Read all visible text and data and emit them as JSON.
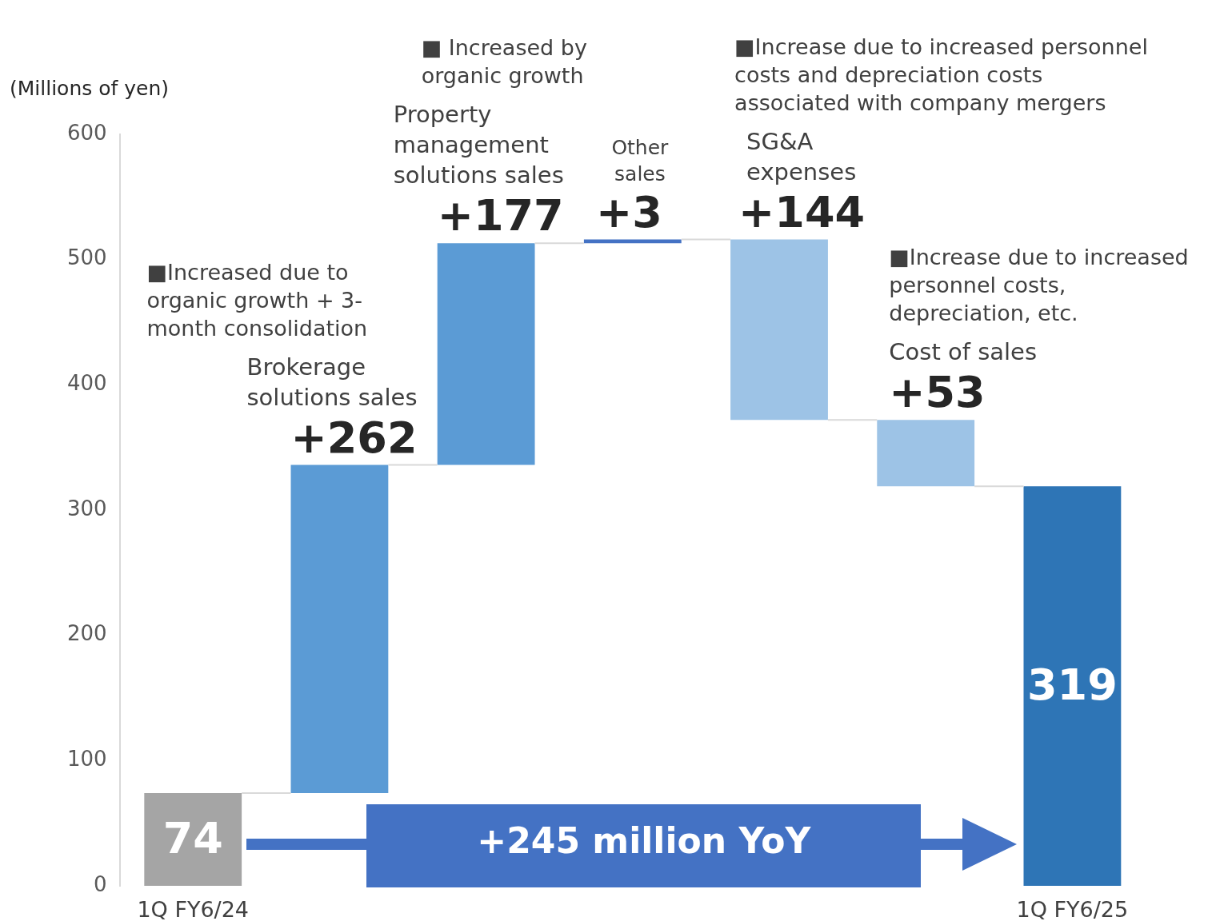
{
  "chart_data": {
    "type": "bar",
    "ylabel": "(Millions of yen)",
    "categories": [
      "1Q FY6/24",
      "Brokerage solutions sales",
      "Property management solutions sales",
      "Other sales",
      "SG&A expenses",
      "Cost of sales",
      "1Q FY6/25"
    ],
    "values": [
      74,
      262,
      177,
      3,
      -144,
      -53,
      319
    ],
    "base": [
      0,
      74,
      336,
      513,
      516,
      372,
      0
    ],
    "colors": [
      "#a5a5a5",
      "#5b9bd5",
      "#5b9bd5",
      "#4472c4",
      "#9dc3e6",
      "#9dc3e6",
      "#2e75b6"
    ],
    "value_labels": [
      "74",
      "+262",
      "+177",
      "+3",
      "+144",
      "+53",
      "319"
    ],
    "ylim": [
      0,
      600
    ],
    "yticks": [
      0,
      100,
      200,
      300,
      400,
      500,
      600
    ],
    "annotations": [
      "■Increased due to organic growth + 3-month consolidation",
      "■ Increased by organic growth",
      "■Increase due to increased personnel costs and depreciation costs associated with company mergers",
      "■Increase due to increased personnel costs, depreciation, etc.",
      "+245 million YoY"
    ]
  }
}
